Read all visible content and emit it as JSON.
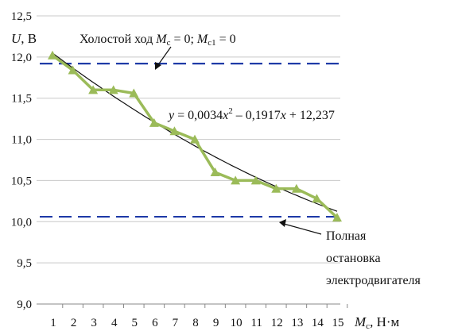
{
  "chart_data": {
    "type": "line",
    "xlabel": {
      "var": "M",
      "sub": "c",
      "unit": ", Н·м"
    },
    "ylabel": {
      "var": "U",
      "unit": ", В"
    },
    "xlim": [
      1,
      15
    ],
    "ylim": [
      9.0,
      12.5
    ],
    "x_ticks": [
      1,
      2,
      3,
      4,
      5,
      6,
      7,
      8,
      9,
      10,
      11,
      12,
      13,
      14,
      15
    ],
    "y_ticks": [
      9.0,
      9.5,
      10.0,
      10.5,
      11.0,
      11.5,
      12.0,
      12.5
    ],
    "y_tick_labels": [
      "9,0",
      "9,5",
      "10,0",
      "10,5",
      "11,0",
      "11,5",
      "12,0",
      "12,5"
    ],
    "grid": "horizontal",
    "series": [
      {
        "kind": "measured",
        "marker": "triangle",
        "color": "#9bbb59",
        "x": [
          1,
          2,
          3,
          4,
          5,
          6,
          7,
          8,
          9,
          10,
          11,
          12,
          13,
          14,
          15
        ],
        "values": [
          12.02,
          11.84,
          11.6,
          11.6,
          11.56,
          11.2,
          11.1,
          11.0,
          10.6,
          10.5,
          10.5,
          10.4,
          10.4,
          10.28,
          10.05
        ]
      },
      {
        "kind": "trendline",
        "color": "#111111",
        "equation": {
          "a": 0.0034,
          "b": -0.1917,
          "c": 12.237
        }
      },
      {
        "kind": "reference",
        "style": "dashed",
        "color": "#1f3ba8",
        "value": 11.92
      },
      {
        "kind": "reference",
        "style": "dashed",
        "color": "#1f3ba8",
        "value": 10.06
      }
    ],
    "annotations": {
      "idle": {
        "prefix": "Холостой ход ",
        "m1": "M",
        "s1": "c",
        "mid": " = 0; ",
        "m2": "M",
        "s2": "c1",
        "suffix": " = 0"
      },
      "formula": {
        "y": "y",
        "p1": " = 0,0034",
        "x1": "x",
        "sup": "2",
        "p2": " – 0,1917",
        "x2": "x",
        "p3": " + 12,237"
      },
      "stop": [
        "Полная",
        "остановка",
        "электродвигателя"
      ]
    }
  }
}
